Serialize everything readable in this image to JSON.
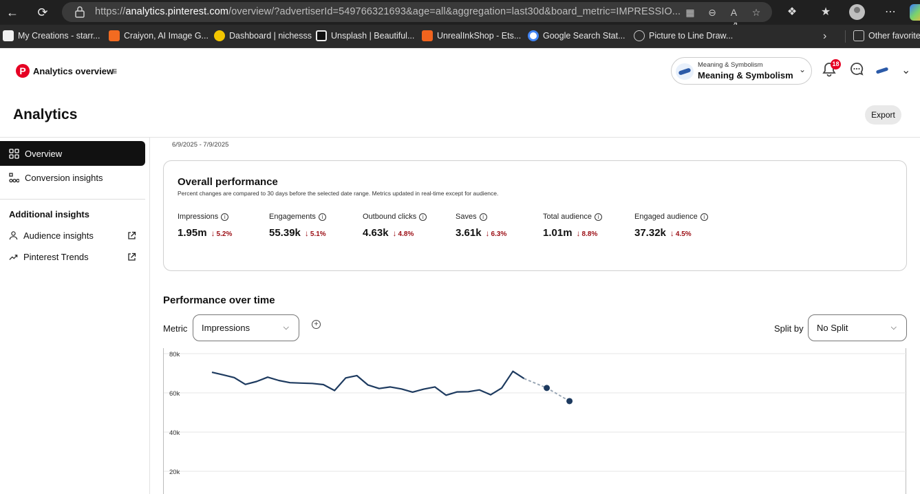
{
  "browser": {
    "url_prefix": "https://",
    "url_host": "analytics.pinterest.com",
    "url_rest": "/overview/?advertiserId=549766321693&age=all&aggregation=last30d&board_metric=IMPRESSIO..."
  },
  "bookmarks": [
    {
      "label": "My Creations - starr...",
      "color": "#4a4a4a"
    },
    {
      "label": "Craiyon, AI Image G...",
      "color": "#f26b21"
    },
    {
      "label": "Dashboard | nichesss",
      "color": "#f2c500"
    },
    {
      "label": "Unsplash | Beautiful...",
      "color": "#111111"
    },
    {
      "label": "UnrealInkShop - Ets...",
      "color": "#f1641e"
    },
    {
      "label": "Google Search Stat...",
      "color": "#4285f4"
    },
    {
      "label": "Picture to Line Draw...",
      "color": "#888888"
    },
    {
      "label": "Other favorites",
      "color": "#666666"
    }
  ],
  "header": {
    "app_title": "Analytics overview",
    "account_small": "Meaning & Symbolism",
    "account_name": "Meaning & Symbolism",
    "notification_count": "18"
  },
  "page": {
    "title": "Analytics",
    "export_label": "Export"
  },
  "sidebar": {
    "items": [
      {
        "label": "Overview"
      },
      {
        "label": "Conversion insights"
      }
    ],
    "additional_heading": "Additional insights",
    "external_items": [
      {
        "label": "Audience insights"
      },
      {
        "label": "Pinterest Trends"
      }
    ]
  },
  "overview": {
    "date_range": "6/9/2025 - 7/9/2025",
    "card_title": "Overall performance",
    "card_note": "Percent changes are compared to 30 days before the selected date range. Metrics updated in real-time except for audience.",
    "metrics": [
      {
        "label": "Impressions",
        "value": "1.95m",
        "change": "5.2%",
        "direction": "down"
      },
      {
        "label": "Engagements",
        "value": "55.39k",
        "change": "5.1%",
        "direction": "down"
      },
      {
        "label": "Outbound clicks",
        "value": "4.63k",
        "change": "4.8%",
        "direction": "down"
      },
      {
        "label": "Saves",
        "value": "3.61k",
        "change": "6.3%",
        "direction": "down"
      },
      {
        "label": "Total audience",
        "value": "1.01m",
        "change": "8.8%",
        "direction": "down"
      },
      {
        "label": "Engaged audience",
        "value": "37.32k",
        "change": "4.5%",
        "direction": "down"
      }
    ],
    "change_color": "#9b0d14"
  },
  "performance": {
    "section_title": "Performance over time",
    "metric_label": "Metric",
    "metric_value": "Impressions",
    "split_label": "Split by",
    "split_value": "No Split"
  },
  "chart_data": {
    "type": "line",
    "ylim": [
      0,
      80000
    ],
    "y_ticks": [
      {
        "v": 80000,
        "label": "80k"
      },
      {
        "v": 60000,
        "label": "60k"
      },
      {
        "v": 40000,
        "label": "40k"
      },
      {
        "v": 20000,
        "label": "20k"
      }
    ],
    "grid": true,
    "line_color": "#1d3a5f",
    "projection_color": "#9aa7b5",
    "series": [
      {
        "values": [
          70500,
          69200,
          67800,
          64300,
          65800,
          68000,
          66300,
          65200,
          65000,
          64800,
          64200,
          61200,
          67600,
          68800,
          64000,
          62200,
          63000,
          62000,
          60400,
          61900,
          63000,
          58800,
          60500,
          60600,
          61500,
          59000,
          62500,
          71000,
          67300
        ]
      }
    ],
    "projected": [
      {
        "index": 28,
        "value": 67300
      },
      {
        "index": 29,
        "value": 62500
      },
      {
        "index": 30,
        "value": 55800
      }
    ]
  }
}
